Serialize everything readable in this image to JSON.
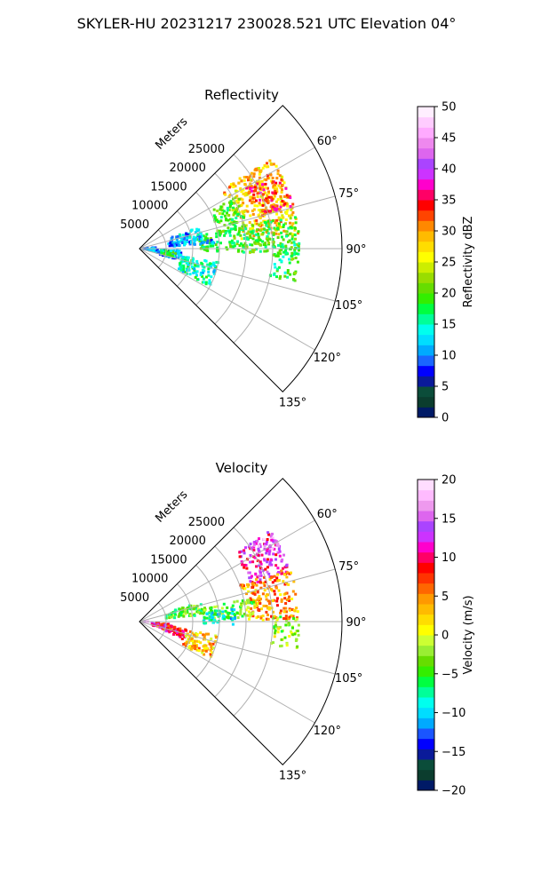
{
  "figure": {
    "suptitle": "SKYLER-HU  20231217  230028.521 UTC Elevation 04°"
  },
  "chart_data": [
    {
      "type": "heatmap",
      "projection": "polar-sector",
      "title": "Reflectivity",
      "range_label": "Meters",
      "range_ticks": [
        "5000",
        "10000",
        "15000",
        "20000",
        "25000"
      ],
      "range_values": [
        5000,
        10000,
        15000,
        20000,
        25000
      ],
      "range_max": 38000,
      "azimuth_range": [
        45,
        135
      ],
      "azimuth_ticks": [
        "60°",
        "75°",
        "90°",
        "105°",
        "120°",
        "135°"
      ],
      "azimuth_values": [
        60,
        75,
        90,
        105,
        120,
        135
      ],
      "grid": true,
      "colorbar": {
        "label": "Reflectivity dBZ",
        "min": 0,
        "max": 50,
        "ticks": [
          "0",
          "5",
          "10",
          "15",
          "20",
          "25",
          "30",
          "35",
          "40",
          "45",
          "50"
        ],
        "tick_values": [
          0,
          5,
          10,
          15,
          20,
          25,
          30,
          35,
          40,
          45,
          50
        ],
        "colors": [
          "#001a66",
          "#0b3d2e",
          "#0b4d3a",
          "#0a1a99",
          "#0000ff",
          "#1a66ff",
          "#00aaff",
          "#00ddff",
          "#00ffee",
          "#00ff99",
          "#00ff40",
          "#33ee00",
          "#66dd00",
          "#99dd00",
          "#ccee00",
          "#ffff00",
          "#ffdd00",
          "#ffbb00",
          "#ff8800",
          "#ff4400",
          "#ff0000",
          "#ff0066",
          "#ff00cc",
          "#cc33ff",
          "#aa44ff",
          "#dd66ee",
          "#ee88ee",
          "#ffaaff",
          "#ffccff",
          "#ffeeff"
        ]
      },
      "echo_regions": [
        {
          "az": [
            55,
            85
          ],
          "r": [
            19000,
            30000
          ],
          "value": 28
        },
        {
          "az": [
            60,
            75
          ],
          "r": [
            23000,
            30000
          ],
          "value": 34
        },
        {
          "az": [
            62,
            80
          ],
          "r": [
            15000,
            21000
          ],
          "value": 20
        },
        {
          "az": [
            78,
            92
          ],
          "r": [
            11000,
            30000
          ],
          "value": 19
        },
        {
          "az": [
            88,
            102
          ],
          "r": [
            25000,
            30000
          ],
          "value": 18
        },
        {
          "az": [
            70,
            82
          ],
          "r": [
            6000,
            12000
          ],
          "value": 12
        },
        {
          "az": [
            80,
            86
          ],
          "r": [
            5500,
            14000
          ],
          "value": 11
        },
        {
          "az": [
            92,
            106
          ],
          "r": [
            3000,
            8000
          ],
          "value": 11
        },
        {
          "az": [
            94,
            104
          ],
          "r": [
            4000,
            7000
          ],
          "value": 17
        },
        {
          "az": [
            86,
            100
          ],
          "r": [
            300,
            3000
          ],
          "value": 11
        },
        {
          "az": [
            100,
            118
          ],
          "r": [
            8000,
            15000
          ],
          "value": 15
        }
      ]
    },
    {
      "type": "heatmap",
      "projection": "polar-sector",
      "title": "Velocity",
      "range_label": "Meters",
      "range_ticks": [
        "5000",
        "10000",
        "15000",
        "20000",
        "25000"
      ],
      "range_values": [
        5000,
        10000,
        15000,
        20000,
        25000
      ],
      "range_max": 38000,
      "azimuth_range": [
        45,
        135
      ],
      "azimuth_ticks": [
        "60°",
        "75°",
        "90°",
        "105°",
        "120°",
        "135°"
      ],
      "azimuth_values": [
        60,
        75,
        90,
        105,
        120,
        135
      ],
      "grid": true,
      "colorbar": {
        "label": "Velocity (m/s)",
        "min": -20,
        "max": 20,
        "ticks": [
          "−20",
          "−15",
          "−10",
          "−5",
          "0",
          "5",
          "10",
          "15",
          "20"
        ],
        "tick_values": [
          -20,
          -15,
          -10,
          -5,
          0,
          5,
          10,
          15,
          20
        ],
        "colors": [
          "#001a66",
          "#0b3d2e",
          "#0b4d3a",
          "#0a1a99",
          "#0000ff",
          "#1a55ff",
          "#00aaff",
          "#00ddff",
          "#00ffee",
          "#00ff99",
          "#00ff40",
          "#33ee00",
          "#66dd00",
          "#99ee33",
          "#ccff33",
          "#ffff00",
          "#ffdd00",
          "#ffbb00",
          "#ff9900",
          "#ff6600",
          "#ff3300",
          "#ff0000",
          "#ff0066",
          "#ff00cc",
          "#cc33ff",
          "#aa44ff",
          "#dd66ee",
          "#ee99ee",
          "#ffbbff",
          "#ffddff"
        ]
      },
      "echo_regions": [
        {
          "az": [
            55,
            72
          ],
          "r": [
            22000,
            30000
          ],
          "value": 12
        },
        {
          "az": [
            55,
            62
          ],
          "r": [
            25000,
            30000
          ],
          "value": 15
        },
        {
          "az": [
            70,
            90
          ],
          "r": [
            20000,
            30000
          ],
          "value": 5
        },
        {
          "az": [
            78,
            88
          ],
          "r": [
            12000,
            22000
          ],
          "value": -3
        },
        {
          "az": [
            82,
            92
          ],
          "r": [
            12000,
            18000
          ],
          "value": -9
        },
        {
          "az": [
            88,
            100
          ],
          "r": [
            25000,
            30000
          ],
          "value": -2
        },
        {
          "az": [
            72,
            84
          ],
          "r": [
            5000,
            12000
          ],
          "value": -4
        },
        {
          "az": [
            88,
            94
          ],
          "r": [
            200,
            2000
          ],
          "value": 15
        },
        {
          "az": [
            94,
            108
          ],
          "r": [
            2000,
            6000
          ],
          "value": 10
        },
        {
          "az": [
            98,
            112
          ],
          "r": [
            5000,
            9000
          ],
          "value": 9
        },
        {
          "az": [
            100,
            118
          ],
          "r": [
            9000,
            15000
          ],
          "value": 3
        }
      ]
    }
  ]
}
